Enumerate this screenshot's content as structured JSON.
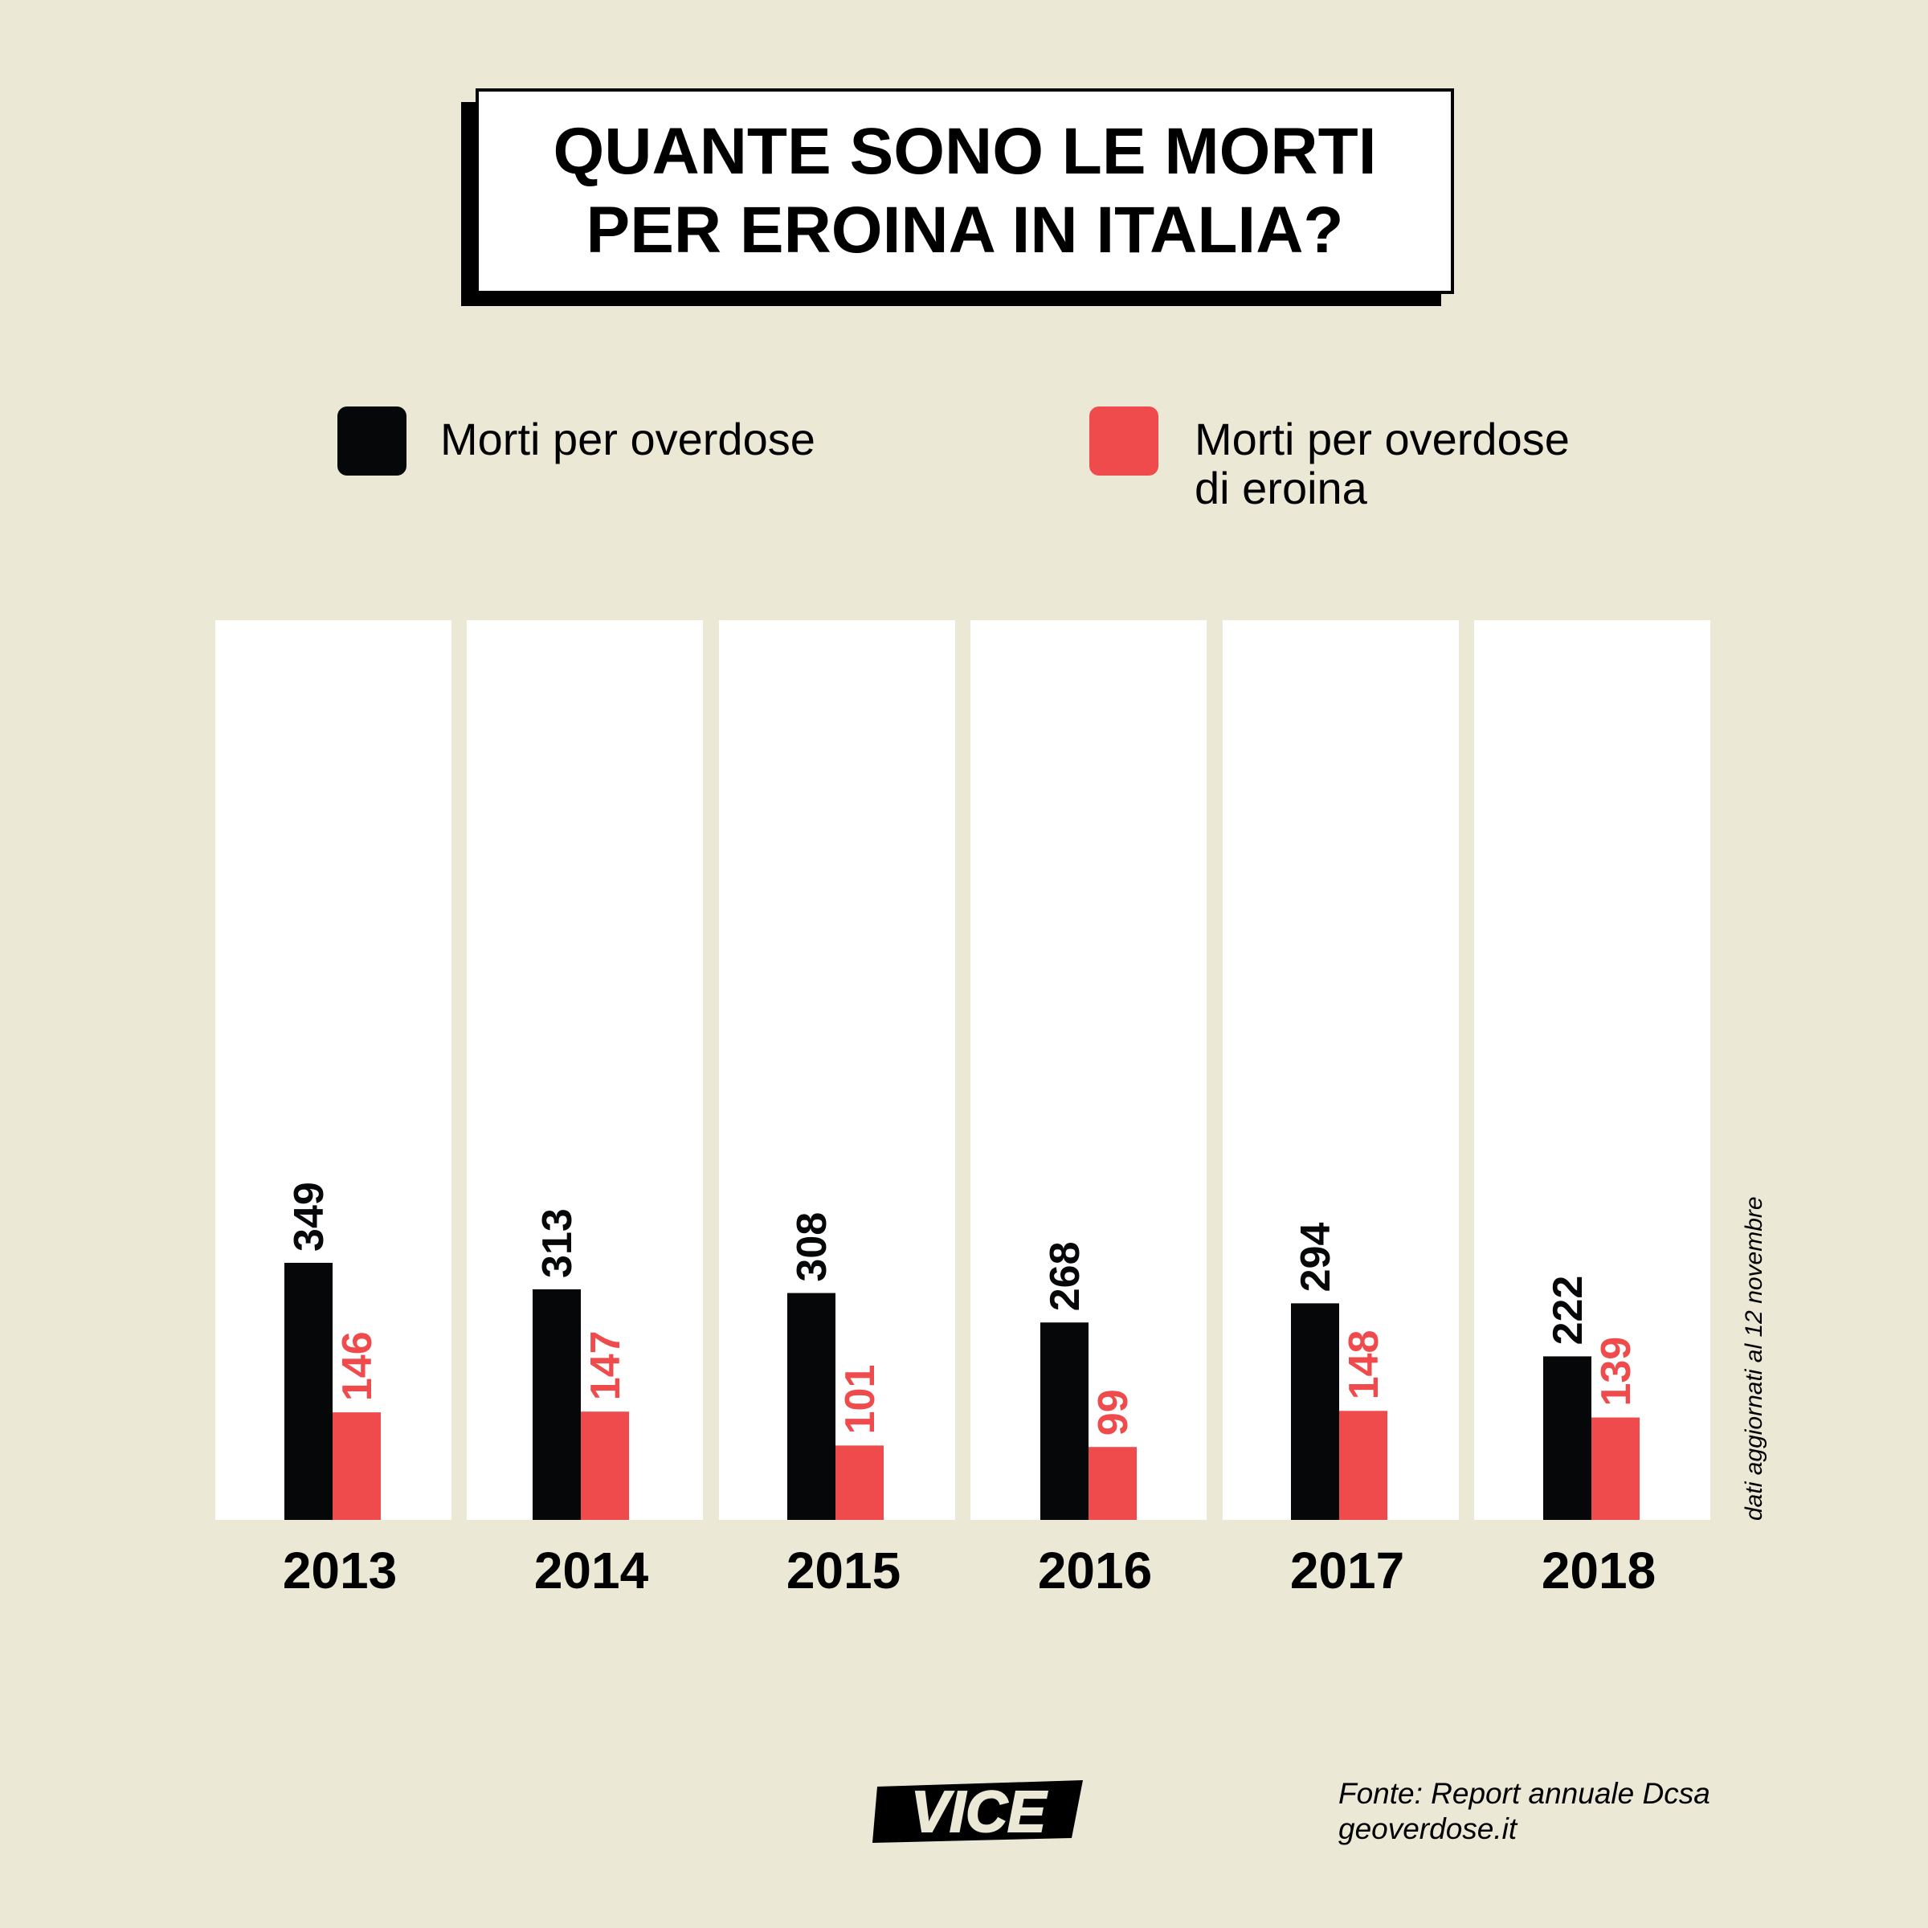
{
  "title": {
    "line1": "QUANTE SONO LE MORTI",
    "line2": "PER EROINA IN ITALIA?"
  },
  "legend": {
    "series1": {
      "label": "Morti per overdose"
    },
    "series2": {
      "line1": "Morti per overdose",
      "line2": "di eroina"
    }
  },
  "colors": {
    "background": "#ebe8d6",
    "series1": "#050708",
    "series2": "#ef4a4c",
    "panel": "#ffffff"
  },
  "chart_data": {
    "type": "bar",
    "categories": [
      "2013",
      "2014",
      "2015",
      "2016",
      "2017",
      "2018"
    ],
    "series": [
      {
        "name": "Morti per overdose",
        "values": [
          349,
          313,
          308,
          268,
          294,
          222
        ]
      },
      {
        "name": "Morti per overdose di eroina",
        "values": [
          146,
          147,
          101,
          99,
          148,
          139
        ]
      }
    ],
    "ylim": [
      0,
      400
    ],
    "grid": false,
    "legend": "top"
  },
  "note": "dati aggiornati al 12 novembre",
  "logo": {
    "text": "VICE"
  },
  "source": {
    "line1": "Fonte: Report annuale Dcsa",
    "line2": "geoverdose.it"
  }
}
